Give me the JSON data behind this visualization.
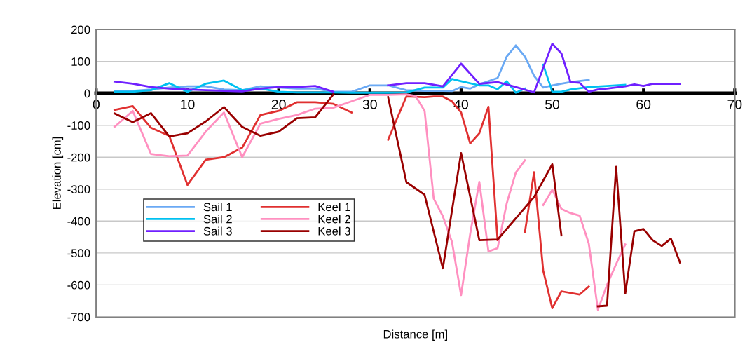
{
  "chart_data": {
    "type": "line",
    "xlabel": "Distance [m]",
    "ylabel": "Elevation [cm]",
    "xlim": [
      0,
      70
    ],
    "xticks": [
      0,
      10,
      20,
      30,
      40,
      50,
      60,
      70
    ],
    "ylim": [
      -700,
      200
    ],
    "yticks": [
      -700,
      -600,
      -500,
      -400,
      -300,
      -200,
      -100,
      0,
      100,
      200
    ],
    "grid": "y",
    "legend": "left",
    "marker": "none",
    "line_style": "solid",
    "series": [
      {
        "name": "Sail 1",
        "color": "#6aa9f4",
        "x": [
          2,
          4,
          6,
          8,
          10,
          12,
          14,
          16,
          18,
          20,
          22,
          24,
          26,
          28,
          30,
          32,
          34,
          36,
          38,
          39,
          40,
          41,
          42,
          44,
          45,
          46,
          47,
          48,
          49,
          50,
          51,
          52,
          54
        ],
        "values": [
          8,
          8,
          12,
          18,
          22,
          22,
          12,
          10,
          22,
          18,
          15,
          15,
          5,
          5,
          25,
          25,
          10,
          8,
          8,
          7,
          20,
          15,
          28,
          48,
          115,
          150,
          115,
          55,
          18,
          25,
          30,
          35,
          42
        ]
      },
      {
        "name": "Keel 1",
        "color": "#e03030",
        "x": [
          2,
          4,
          6,
          8,
          10,
          12,
          14,
          16,
          18,
          20,
          22,
          24,
          26,
          28,
          30,
          32,
          34,
          36,
          37,
          38,
          39,
          40,
          41,
          42,
          43,
          44,
          46,
          47,
          48,
          49,
          50,
          51,
          53,
          54
        ],
        "values": [
          -52,
          -40,
          -108,
          -133,
          -287,
          -208,
          -200,
          -170,
          -68,
          -55,
          -28,
          -28,
          -33,
          -60,
          null,
          -145,
          -10,
          -12,
          -10,
          -10,
          -25,
          -60,
          -157,
          -125,
          -42,
          -460,
          null,
          -435,
          -247,
          -555,
          -673,
          -620,
          -630,
          -605
        ]
      },
      {
        "name": "Sail 2",
        "color": "#00c0f0",
        "x": [
          2,
          4,
          6,
          8,
          10,
          12,
          14,
          16,
          18,
          20,
          22,
          24,
          26,
          28,
          30,
          32,
          34,
          36,
          38,
          39,
          40,
          42,
          43,
          44,
          45,
          46,
          47,
          48,
          49,
          50,
          51,
          52,
          54,
          56,
          58
        ],
        "values": [
          5,
          5,
          10,
          32,
          5,
          30,
          40,
          10,
          15,
          5,
          3,
          3,
          3,
          2,
          2,
          2,
          3,
          18,
          18,
          45,
          38,
          25,
          25,
          13,
          38,
          2,
          15,
          null,
          90,
          5,
          5,
          12,
          20,
          23,
          27
        ]
      },
      {
        "name": "Keel 2",
        "color": "#ff90c0",
        "x": [
          2,
          4,
          6,
          8,
          10,
          12,
          14,
          16,
          18,
          20,
          22,
          24,
          26,
          28,
          30,
          32,
          34,
          35,
          36,
          37,
          38,
          39,
          40,
          41,
          42,
          43,
          44,
          45,
          46,
          47,
          48,
          49,
          50,
          51,
          52,
          53,
          54,
          55,
          56,
          57,
          58
        ],
        "values": [
          -105,
          -55,
          -190,
          -197,
          -195,
          -120,
          -60,
          -200,
          -95,
          -80,
          -68,
          -48,
          -45,
          -25,
          -5,
          -5,
          -3,
          -8,
          -55,
          -330,
          -385,
          -465,
          -632,
          -440,
          -277,
          -495,
          -485,
          -345,
          -248,
          -210,
          null,
          -350,
          -302,
          -362,
          -375,
          -383,
          -470,
          -678,
          -600,
          -535,
          -473
        ]
      },
      {
        "name": "Sail 3",
        "color": "#7020ff",
        "x": [
          2,
          4,
          6,
          8,
          10,
          12,
          14,
          16,
          18,
          20,
          22,
          24,
          26,
          30,
          32,
          34,
          36,
          38,
          40,
          42,
          44,
          46,
          48,
          50,
          51,
          52,
          53,
          54,
          55,
          56,
          58,
          59,
          60,
          61,
          62,
          64
        ],
        "values": [
          37,
          30,
          20,
          15,
          12,
          10,
          8,
          6,
          15,
          20,
          20,
          23,
          5,
          null,
          25,
          32,
          32,
          22,
          93,
          30,
          35,
          20,
          3,
          155,
          125,
          35,
          33,
          5,
          12,
          15,
          22,
          28,
          23,
          30,
          30,
          30
        ]
      },
      {
        "name": "Keel 3",
        "color": "#990000",
        "x": [
          2,
          4,
          6,
          8,
          10,
          12,
          14,
          16,
          18,
          20,
          22,
          24,
          26,
          30,
          32,
          34,
          36,
          38,
          40,
          42,
          44,
          48,
          50,
          51,
          53,
          55,
          56,
          57,
          58,
          59,
          60,
          61,
          62,
          63,
          64
        ],
        "values": [
          -63,
          -90,
          -62,
          -135,
          -125,
          -88,
          -43,
          -105,
          -133,
          -120,
          -78,
          -75,
          -3,
          null,
          -12,
          -278,
          -318,
          -548,
          -187,
          -460,
          -458,
          -325,
          -222,
          -445,
          null,
          -667,
          -665,
          -230,
          -627,
          -432,
          -425,
          -460,
          -478,
          -455,
          -530
        ]
      }
    ]
  }
}
